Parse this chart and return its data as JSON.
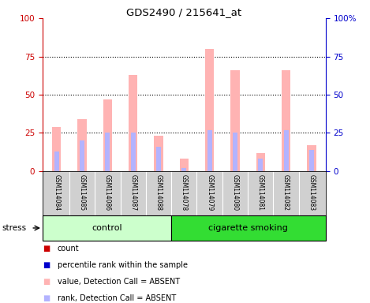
{
  "title": "GDS2490 / 215641_at",
  "samples": [
    "GSM114084",
    "GSM114085",
    "GSM114086",
    "GSM114087",
    "GSM114088",
    "GSM114078",
    "GSM114079",
    "GSM114080",
    "GSM114081",
    "GSM114082",
    "GSM114083"
  ],
  "ctrl_count": 5,
  "smoke_count": 6,
  "absent_value": [
    29,
    34,
    47,
    63,
    23,
    8,
    80,
    66,
    12,
    66,
    17
  ],
  "absent_rank": [
    13,
    20,
    25,
    25,
    16,
    2,
    27,
    25,
    8,
    27,
    14
  ],
  "bar_width": 0.35,
  "rank_bar_width": 0.18,
  "ylim": [
    0,
    100
  ],
  "grid_vals": [
    25,
    50,
    75
  ],
  "group_colors": {
    "control": "#ccffcc",
    "cigarette smoking": "#33dd33"
  },
  "absent_bar_color": "#ffb3b3",
  "absent_rank_color": "#b3b3ff",
  "count_color": "#cc0000",
  "pct_rank_color": "#0000cc",
  "legend_items": [
    {
      "label": "count",
      "color": "#cc0000"
    },
    {
      "label": "percentile rank within the sample",
      "color": "#0000cc"
    },
    {
      "label": "value, Detection Call = ABSENT",
      "color": "#ffb3b3"
    },
    {
      "label": "rank, Detection Call = ABSENT",
      "color": "#b3b3ff"
    }
  ],
  "stress_label": "stress",
  "bg_color": "#ffffff",
  "tick_label_color_left": "#cc0000",
  "tick_label_color_right": "#0000cc"
}
